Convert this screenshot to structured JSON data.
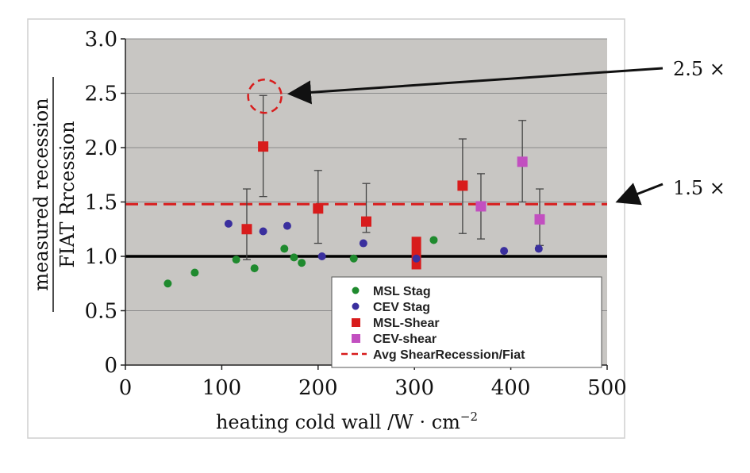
{
  "chart_data": {
    "type": "scatter",
    "title": "",
    "xlabel": "heating cold wall /W · cm",
    "xlabel_sup": "−2",
    "ylabel": {
      "numerator": "measured recession",
      "denominator": "FIAT Rrcession"
    },
    "xlim": [
      0,
      500
    ],
    "ylim": [
      0,
      3.0
    ],
    "x_ticks": [
      "0",
      "100",
      "200",
      "300",
      "400",
      "500"
    ],
    "y_ticks": [
      "0",
      "0.5",
      "1.0",
      "1.5",
      "2.0",
      "2.5",
      "3.0"
    ],
    "grid": true,
    "legend_position": "bottom-right",
    "series": [
      {
        "name": "MSL Stag",
        "marker": "circle",
        "color": "#1f8a2e",
        "points": [
          {
            "x": 44,
            "y": 0.75
          },
          {
            "x": 72,
            "y": 0.85
          },
          {
            "x": 115,
            "y": 0.97
          },
          {
            "x": 134,
            "y": 0.89
          },
          {
            "x": 165,
            "y": 1.07
          },
          {
            "x": 175,
            "y": 0.99
          },
          {
            "x": 183,
            "y": 0.94
          },
          {
            "x": 237,
            "y": 0.98
          },
          {
            "x": 320,
            "y": 1.15
          }
        ]
      },
      {
        "name": "CEV Stag",
        "marker": "circle",
        "color": "#3a2f9e",
        "points": [
          {
            "x": 107,
            "y": 1.3
          },
          {
            "x": 143,
            "y": 1.23
          },
          {
            "x": 168,
            "y": 1.28
          },
          {
            "x": 204,
            "y": 1.0
          },
          {
            "x": 247,
            "y": 1.12
          },
          {
            "x": 302,
            "y": 0.98
          },
          {
            "x": 393,
            "y": 1.05
          },
          {
            "x": 429,
            "y": 1.07
          }
        ]
      },
      {
        "name": "MSL-Shear",
        "marker": "square",
        "color": "#d81c1c",
        "points": [
          {
            "x": 126,
            "y": 1.25,
            "low": 0.97,
            "high": 1.62
          },
          {
            "x": 143,
            "y": 2.01,
            "low": 1.55,
            "high": 2.48
          },
          {
            "x": 200,
            "y": 1.44,
            "low": 1.12,
            "high": 1.79
          },
          {
            "x": 250,
            "y": 1.32,
            "low": 1.22,
            "high": 1.67
          },
          {
            "x": 350,
            "y": 1.65,
            "low": 1.21,
            "high": 2.08
          }
        ]
      },
      {
        "name": "CEV-shear",
        "marker": "square",
        "color": "#c24fc0",
        "points": [
          {
            "x": 369,
            "y": 1.46,
            "low": 1.16,
            "high": 1.76
          },
          {
            "x": 412,
            "y": 1.87,
            "low": 1.5,
            "high": 2.25
          },
          {
            "x": 430,
            "y": 1.34,
            "low": 1.1,
            "high": 1.62
          }
        ]
      }
    ],
    "msl_shear_bar": {
      "x": 302,
      "low": 0.88,
      "high": 1.18
    },
    "reference_lines": [
      {
        "name": "Avg ShearRecession/Fiat",
        "y": 1.48,
        "style": "dashed",
        "color": "#d81c1c"
      },
      {
        "y": 1.0,
        "style": "solid",
        "color": "#000000"
      }
    ],
    "highlight": {
      "x": 143,
      "y": 2.48
    },
    "annotations": [
      {
        "text": "2.5 ×",
        "points_to_y": 2.5
      },
      {
        "text": "1.5 ×",
        "points_to_y": 1.5
      }
    ],
    "colors": {
      "plot_background": "#c8c6c3",
      "grid": "#8a8a8a"
    }
  }
}
